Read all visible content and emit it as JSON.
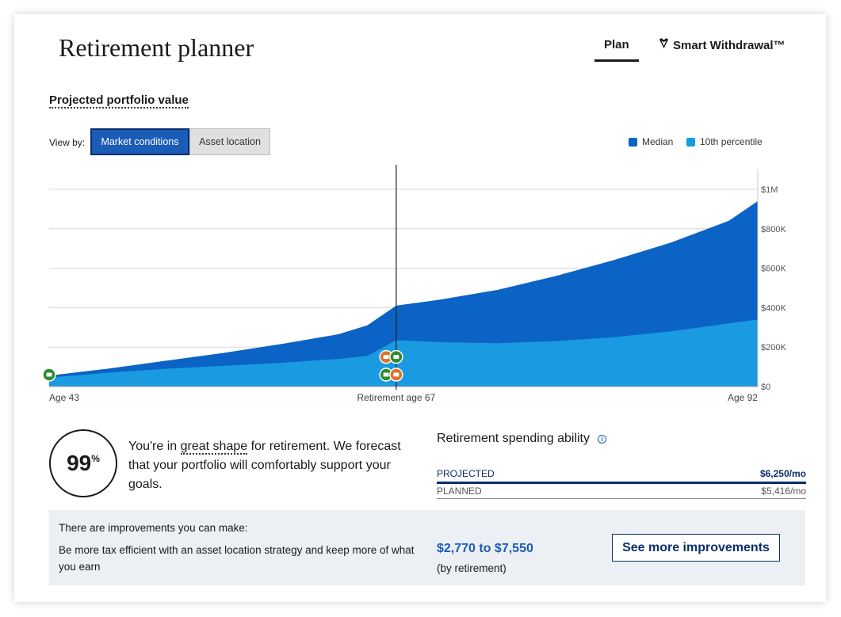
{
  "header": {
    "title": "Retirement planner",
    "tabs": [
      {
        "label": "Plan",
        "active": true
      },
      {
        "label": "Smart Withdrawal™",
        "icon": "diamond-icon"
      }
    ]
  },
  "section": {
    "subtitle": "Projected portfolio value",
    "view_by_label": "View by:",
    "view_options": [
      "Market conditions",
      "Asset location"
    ],
    "selected_view": "Market conditions"
  },
  "legend": [
    {
      "label": "Median",
      "color": "#0a63c5"
    },
    {
      "label": "10th percentile",
      "color": "#1a9ae0"
    }
  ],
  "chart_data": {
    "type": "area",
    "x_unit": "age",
    "x_ticks": [
      {
        "value": 43,
        "label": "Age 43"
      },
      {
        "value": 67,
        "label": "Retirement age 67"
      },
      {
        "value": 92,
        "label": "Age 92"
      }
    ],
    "y_ticks": [
      {
        "value": 0,
        "label": "$0"
      },
      {
        "value": 200000,
        "label": "$200K"
      },
      {
        "value": 400000,
        "label": "$400K"
      },
      {
        "value": 600000,
        "label": "$600K"
      },
      {
        "value": 800000,
        "label": "$800K"
      },
      {
        "value": 1000000,
        "label": "$1M"
      }
    ],
    "ylim": [
      0,
      1000000
    ],
    "xlim": [
      43,
      92
    ],
    "marker_age": 67,
    "series": [
      {
        "name": "Median",
        "color": "#0a63c5",
        "x": [
          43,
          47,
          51,
          55,
          59,
          63,
          65,
          66,
          67,
          70,
          74,
          78,
          82,
          86,
          90,
          92
        ],
        "values": [
          55000,
          90000,
          130000,
          170000,
          215000,
          265000,
          310000,
          360000,
          410000,
          440000,
          490000,
          560000,
          640000,
          730000,
          840000,
          940000
        ]
      },
      {
        "name": "10th percentile",
        "color": "#1a9ae0",
        "x": [
          43,
          47,
          51,
          55,
          59,
          63,
          65,
          66,
          67,
          70,
          74,
          78,
          82,
          86,
          90,
          92
        ],
        "values": [
          45000,
          70000,
          90000,
          105000,
          120000,
          140000,
          155000,
          195000,
          235000,
          225000,
          220000,
          230000,
          250000,
          280000,
          320000,
          340000
        ]
      }
    ],
    "event_markers": [
      {
        "age": 43,
        "value": 60000,
        "color": "#2e8b2e",
        "icon": "piggy-bank-icon"
      },
      {
        "age": 66.3,
        "value": 150000,
        "color": "#e0702a",
        "icon": "umbrella-icon"
      },
      {
        "age": 66.3,
        "value": 60000,
        "color": "#2e8b2e",
        "icon": "money-icon"
      },
      {
        "age": 67,
        "value": 150000,
        "color": "#2e8b2e",
        "icon": "money-icon"
      },
      {
        "age": 67,
        "value": 60000,
        "color": "#e0702a",
        "icon": "umbrella-icon"
      }
    ]
  },
  "score": {
    "value": "99",
    "unit": "%",
    "text_before": "You're in ",
    "text_highlight": "great shape",
    "text_after": " for retirement. We forecast that your portfolio will comfortably support your goals."
  },
  "spending": {
    "title": "Retirement spending ability",
    "projected_label": "PROJECTED",
    "projected_value": "$6,250/mo",
    "planned_label": "PLANNED",
    "planned_value": "$5,416/mo"
  },
  "improvements": {
    "heading": "There are improvements you can make:",
    "body": "Be more tax efficient with an asset location strategy and keep more of what you earn",
    "range": "$2,770 to $7,550",
    "note": "(by retirement)",
    "button": "See more improvements"
  }
}
